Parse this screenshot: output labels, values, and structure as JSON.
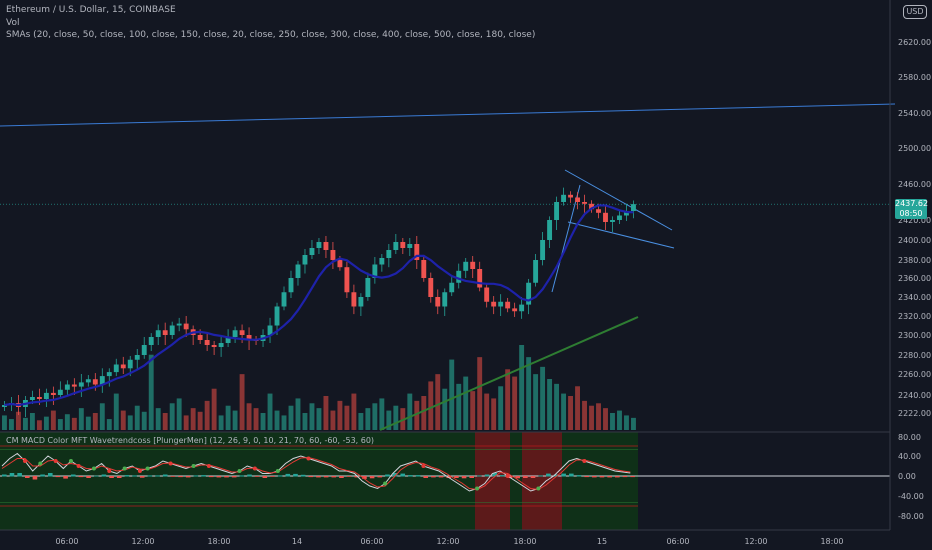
{
  "header": {
    "symbol_line": "Ethereum / U.S. Dollar, 15, COINBASE",
    "vol_label": "Vol",
    "sma_label": "SMAs (20, close, 50, close, 100, close, 150, close, 20, close, 250, close, 300, close, 400, close, 500, close, 180, close)",
    "indicator_label": "CM MACD Color MFT Wavetrendcoss [PlungerMen] (12, 26, 9, 0, 10, 21, 70, 60, -60, -53, 60)"
  },
  "currency_button": "USD",
  "price_tag": {
    "price": "2437.62",
    "countdown": "08:50"
  },
  "colors": {
    "background": "#131722",
    "up": "#26a69a",
    "down": "#ef5350",
    "sma_blue": "#1e22aa",
    "trendline": "#4a90e2",
    "indicator_bg": "#0f3018",
    "highlight": "#5c1a1a"
  },
  "chart_data": [
    {
      "type": "candlestick",
      "title": "Ethereum / U.S. Dollar, 15, COINBASE",
      "y_ticks": [
        2620,
        2580,
        2540,
        2500,
        2460,
        2420,
        2400,
        2380,
        2360,
        2340,
        2320,
        2300,
        2280,
        2260,
        2240,
        2222
      ],
      "y_tick_labels": [
        "2620.00",
        "2580.00",
        "2540.00",
        "2500.00",
        "2460.00",
        "2420.00",
        "2400.00",
        "2380.00",
        "2360.00",
        "2340.00",
        "2320.00",
        "2300.00",
        "2280.00",
        "2260.00",
        "2240.00",
        "2222.00"
      ],
      "x_tick_labels": [
        "06:00",
        "12:00",
        "18:00",
        "14",
        "06:00",
        "12:00",
        "18:00",
        "15",
        "06:00",
        "12:00",
        "18:00"
      ],
      "last_price": 2437.62,
      "close_series": [
        2230,
        2232,
        2228,
        2235,
        2238,
        2236,
        2242,
        2240,
        2245,
        2250,
        2248,
        2252,
        2255,
        2250,
        2258,
        2262,
        2270,
        2266,
        2275,
        2280,
        2290,
        2298,
        2305,
        2300,
        2310,
        2312,
        2306,
        2300,
        2295,
        2290,
        2288,
        2292,
        2298,
        2305,
        2300,
        2295,
        2294,
        2300,
        2310,
        2330,
        2345,
        2360,
        2375,
        2385,
        2392,
        2398,
        2390,
        2380,
        2372,
        2345,
        2330,
        2340,
        2360,
        2375,
        2382,
        2390,
        2398,
        2392,
        2396,
        2380,
        2360,
        2340,
        2330,
        2345,
        2355,
        2368,
        2378,
        2370,
        2350,
        2335,
        2330,
        2335,
        2328,
        2325,
        2332,
        2355,
        2380,
        2400,
        2420,
        2440,
        2448,
        2445,
        2440,
        2438,
        2432,
        2428,
        2418,
        2420,
        2425,
        2430,
        2437.62
      ],
      "annotations": [
        "2437.62",
        "08:50"
      ]
    },
    {
      "type": "bar",
      "name": "Vol",
      "values": [
        12,
        9,
        15,
        10,
        14,
        8,
        11,
        16,
        9,
        13,
        10,
        18,
        11,
        14,
        22,
        9,
        30,
        16,
        12,
        20,
        15,
        62,
        18,
        14,
        22,
        26,
        12,
        18,
        15,
        24,
        34,
        12,
        20,
        16,
        46,
        22,
        18,
        14,
        30,
        16,
        12,
        20,
        26,
        14,
        22,
        18,
        28,
        16,
        24,
        20,
        30,
        14,
        18,
        22,
        26,
        16,
        20,
        18,
        30,
        24,
        28,
        40,
        46,
        34,
        58,
        38,
        44,
        32,
        60,
        30,
        26,
        36,
        50,
        44,
        70,
        60,
        46,
        52,
        42,
        38,
        30,
        28,
        36,
        24,
        20,
        22,
        18,
        14,
        16,
        12,
        10
      ]
    },
    {
      "type": "line",
      "name": "CM MACD Color MFT Wavetrendcoss [PlungerMen]",
      "y_ticks": [
        80,
        40,
        0,
        -40,
        -80
      ],
      "y_tick_labels": [
        "80.00",
        "40.00",
        "0.00",
        "-40.00",
        "-80.00"
      ],
      "wt1": [
        20,
        35,
        45,
        30,
        10,
        25,
        40,
        30,
        15,
        30,
        20,
        10,
        15,
        25,
        10,
        5,
        15,
        20,
        10,
        15,
        20,
        30,
        25,
        20,
        15,
        20,
        25,
        20,
        15,
        10,
        5,
        10,
        20,
        15,
        5,
        5,
        10,
        25,
        35,
        40,
        35,
        30,
        25,
        20,
        10,
        10,
        5,
        -10,
        -20,
        -25,
        -15,
        5,
        20,
        25,
        30,
        20,
        15,
        10,
        0,
        -10,
        -20,
        -30,
        -25,
        -15,
        5,
        10,
        0,
        -10,
        -20,
        -30,
        -25,
        -10,
        0,
        15,
        30,
        35,
        30,
        25,
        20,
        15,
        10,
        8,
        6
      ],
      "wt2": [
        15,
        25,
        35,
        35,
        20,
        20,
        30,
        32,
        22,
        25,
        22,
        15,
        14,
        20,
        15,
        10,
        12,
        18,
        14,
        13,
        18,
        25,
        26,
        22,
        18,
        18,
        22,
        22,
        18,
        13,
        8,
        8,
        15,
        16,
        10,
        6,
        8,
        18,
        28,
        36,
        37,
        33,
        28,
        23,
        15,
        11,
        8,
        -2,
        -14,
        -22,
        -20,
        -5,
        12,
        22,
        27,
        25,
        18,
        13,
        5,
        -5,
        -14,
        -25,
        -27,
        -20,
        -5,
        7,
        5,
        -4,
        -15,
        -25,
        -27,
        -18,
        -5,
        7,
        22,
        32,
        32,
        28,
        23,
        18,
        13,
        10,
        8
      ],
      "highlight_label": ""
    }
  ]
}
